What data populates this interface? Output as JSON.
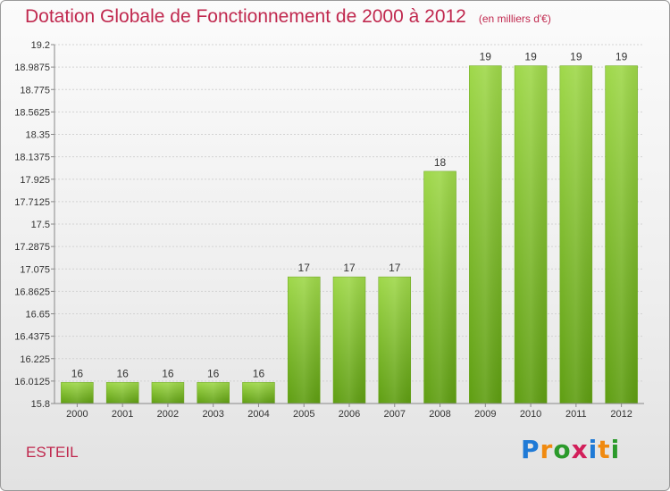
{
  "header": {
    "title": "Dotation Globale de Fonctionnement de 2000 à 2012",
    "unit": "(en milliers d'€)"
  },
  "footer": {
    "commune": "ESTEIL",
    "logo": "Proxiti"
  },
  "chart_data": {
    "type": "bar",
    "title": "Dotation Globale de Fonctionnement de 2000 à 2012",
    "subtitle": "(en milliers d'€)",
    "xlabel": "",
    "ylabel": "",
    "categories": [
      "2000",
      "2001",
      "2002",
      "2003",
      "2004",
      "2005",
      "2006",
      "2007",
      "2008",
      "2009",
      "2010",
      "2011",
      "2012"
    ],
    "values": [
      16,
      16,
      16,
      16,
      16,
      17,
      17,
      17,
      18,
      19,
      19,
      19,
      19
    ],
    "value_labels": [
      "16",
      "16",
      "16",
      "16",
      "16",
      "17",
      "17",
      "17",
      "18",
      "19",
      "19",
      "19",
      "19"
    ],
    "ylim": [
      15.8,
      19.2
    ],
    "yticks": [
      "15.8",
      "16.0125",
      "16.225",
      "16.4375",
      "16.65",
      "16.8625",
      "17.075",
      "17.2875",
      "17.5",
      "17.7125",
      "17.925",
      "18.1375",
      "18.35",
      "18.5625",
      "18.775",
      "18.9875",
      "19.2"
    ],
    "grid": true,
    "legend": "none",
    "bar_color": "#7cbf2a"
  }
}
